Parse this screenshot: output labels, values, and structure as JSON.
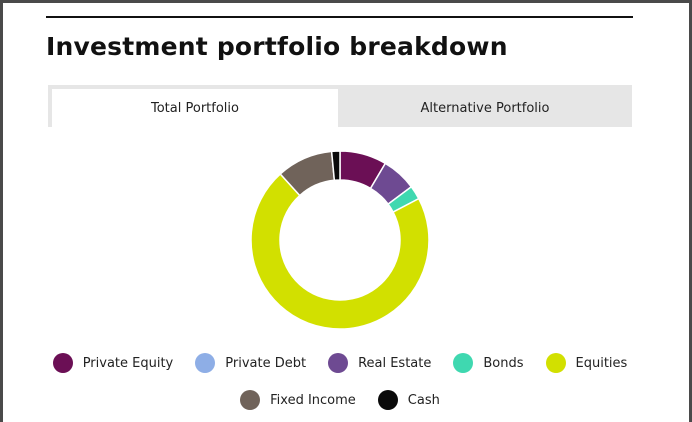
{
  "header": {
    "title": "Investment portfolio breakdown"
  },
  "tabs": [
    {
      "label": "Total Portfolio",
      "active": true
    },
    {
      "label": "Alternative Portfolio",
      "active": false
    }
  ],
  "chart_data": {
    "type": "pie",
    "donut": true,
    "title": "",
    "slices": [
      {
        "name": "Private Equity",
        "value": 8.5,
        "color": "#6b0f55"
      },
      {
        "name": "Private Debt",
        "value": 0,
        "color": "#8eaee6"
      },
      {
        "name": "Real Estate",
        "value": 6.3,
        "color": "#6e4a92"
      },
      {
        "name": "Bonds",
        "value": 2.5,
        "color": "#3fd8b0"
      },
      {
        "name": "Equities",
        "value": 71.0,
        "color": "#d2e000"
      },
      {
        "name": "Fixed Income",
        "value": 10.2,
        "color": "#70635a"
      },
      {
        "name": "Cash",
        "value": 1.5,
        "color": "#0a0a0a"
      }
    ],
    "legend_position": "bottom"
  },
  "legend": {
    "rows": [
      [
        0,
        1,
        2,
        3,
        4
      ],
      [
        5,
        6
      ]
    ]
  }
}
